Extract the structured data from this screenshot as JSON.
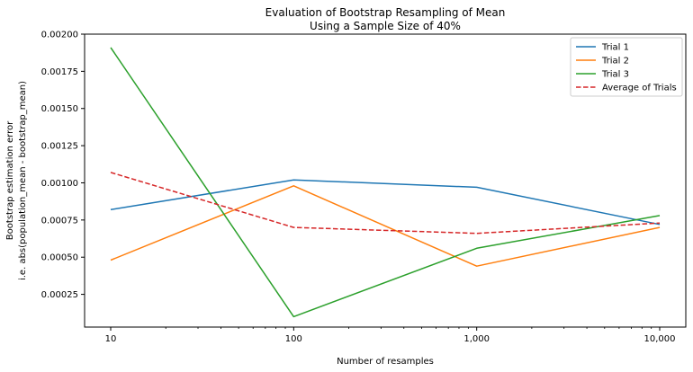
{
  "chart_data": {
    "type": "line",
    "title": "Evaluation of Bootstrap Resampling of Mean",
    "subtitle": "Using a Sample Size of 40%",
    "xlabel": "Number of resamples",
    "ylabel": "Bootstrap estimation error",
    "ylabel2": "i.e. abs(population_mean - bootstrap_mean)",
    "x_scale": "log",
    "x": [
      10,
      100,
      1000,
      10000
    ],
    "x_tick_labels": [
      "10",
      "100",
      "1,000",
      "10,000"
    ],
    "ylim": [
      3e-05,
      0.002
    ],
    "y_ticks": [
      0.00025,
      0.0005,
      0.00075,
      0.001,
      0.00125,
      0.0015,
      0.00175,
      0.002
    ],
    "y_tick_labels": [
      "0.00025",
      "0.00050",
      "0.00075",
      "0.00100",
      "0.00125",
      "0.00150",
      "0.00175",
      "0.00200"
    ],
    "grid": false,
    "legend_position": "top-right",
    "series": [
      {
        "name": "Trial 1",
        "color": "#1f77b4",
        "style": "solid",
        "values": [
          0.00082,
          0.00102,
          0.00097,
          0.00072
        ]
      },
      {
        "name": "Trial 2",
        "color": "#ff7f0e",
        "style": "solid",
        "values": [
          0.00048,
          0.00098,
          0.00044,
          0.0007
        ]
      },
      {
        "name": "Trial 3",
        "color": "#2ca02c",
        "style": "solid",
        "values": [
          0.00191,
          0.0001,
          0.00056,
          0.00078
        ]
      },
      {
        "name": "Average of Trials",
        "color": "#d62728",
        "style": "dashed",
        "values": [
          0.00107,
          0.0007,
          0.00066,
          0.00073
        ]
      }
    ]
  }
}
